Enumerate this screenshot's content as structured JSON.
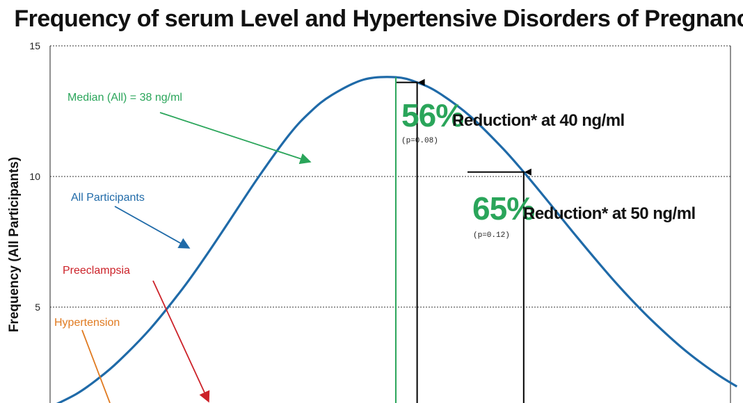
{
  "chart_data": {
    "type": "line",
    "title": "Frequency of serum Level and Hypertensive Disorders of Pregnancy",
    "ylabel": "Frequency (All Participants)",
    "xlabel": "",
    "ylim": [
      0,
      15
    ],
    "yticks": [
      5,
      10,
      15
    ],
    "grid": true,
    "series": [
      {
        "name": "All Participants",
        "color": "#1f6aa8",
        "x": [
          5,
          8,
          10,
          12,
          15,
          18,
          20,
          22,
          25,
          28,
          30,
          32,
          35,
          38,
          40,
          42,
          45,
          48,
          50,
          52,
          55,
          58,
          60,
          62,
          65,
          68,
          70
        ],
        "y": [
          1.06,
          1.67,
          2.24,
          2.93,
          4.19,
          5.71,
          6.85,
          8.06,
          9.91,
          11.6,
          12.48,
          13.12,
          13.71,
          13.8,
          13.6,
          13.21,
          12.3,
          11.09,
          10.17,
          9.19,
          7.68,
          6.23,
          5.33,
          4.5,
          3.39,
          2.47,
          1.96
        ]
      }
    ],
    "median": {
      "label": "Median (All) = 38 ng/ml",
      "x": 38,
      "color": "#2aa55a"
    },
    "markers": [
      {
        "x": 40,
        "pct": "56%",
        "text": "Reduction* at 40 ng/ml",
        "pval": "(p=0.08)"
      },
      {
        "x": 50,
        "pct": "65%",
        "text": "Reduction* at 50 ng/ml",
        "pval": "(p=0.12)"
      }
    ],
    "annotations": [
      {
        "text": "All Participants",
        "color": "#1f6aa8"
      },
      {
        "text": "Preeclampsia",
        "color": "#cc2229"
      },
      {
        "text": "Hypertension",
        "color": "#e07a20"
      }
    ]
  }
}
